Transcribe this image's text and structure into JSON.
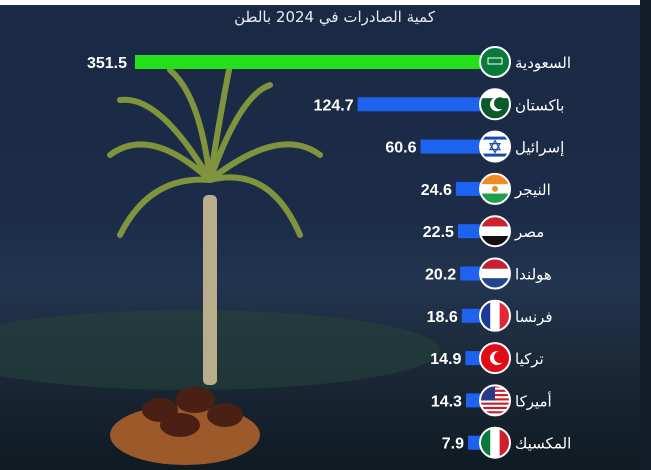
{
  "chart_data": {
    "type": "bar",
    "orientation": "horizontal",
    "title": "كمية الصادرات في 2024 بالطن",
    "categories": [
      "السعودية",
      "باكستان",
      "إسرائيل",
      "النيجر",
      "مصر",
      "هولندا",
      "فرنسا",
      "تركيا",
      "أميركا",
      "المكسيك"
    ],
    "values": [
      351.5,
      124.7,
      60.6,
      24.6,
      22.5,
      20.2,
      18.6,
      14.9,
      14.3,
      7.9
    ],
    "value_labels": [
      "351.5",
      "124.7",
      "60.6",
      "24.6",
      "22.5",
      "20.2",
      "18.6",
      "14.9",
      "14.3",
      "7.9"
    ],
    "flags": [
      "saudi-arabia",
      "pakistan",
      "israel",
      "niger",
      "egypt",
      "netherlands",
      "france",
      "turkey",
      "usa",
      "mexico"
    ],
    "colors": {
      "highlight": "#22e01a",
      "bar": "#1e63f0",
      "background": "#1b2b46"
    },
    "legend": "none",
    "grid": false
  }
}
